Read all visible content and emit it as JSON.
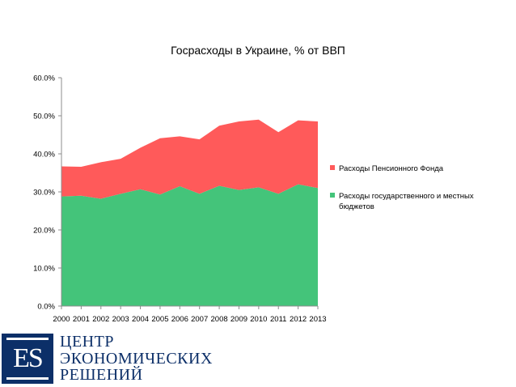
{
  "chart_data": {
    "type": "area",
    "stacked": true,
    "title": "Госрасходы в Украине, % от ВВП",
    "xlabel": "",
    "ylabel": "",
    "x": [
      "2000",
      "2001",
      "2002",
      "2003",
      "2004",
      "2005",
      "2006",
      "2007",
      "2008",
      "2009",
      "2010",
      "2011",
      "2012",
      "2013"
    ],
    "ylim": [
      0,
      60
    ],
    "yticks": [
      "0.0%",
      "10.0%",
      "20.0%",
      "30.0%",
      "40.0%",
      "50.0%",
      "60.0%"
    ],
    "ytick_values": [
      0,
      10,
      20,
      30,
      40,
      50,
      60
    ],
    "grid": false,
    "legend_position": "right",
    "series": [
      {
        "name": "Расходы государственного и местных бюджетов",
        "color": "#44c47a",
        "values": [
          28.8,
          29.0,
          28.2,
          29.5,
          30.7,
          29.3,
          31.5,
          29.5,
          31.6,
          30.5,
          31.2,
          29.5,
          32.0,
          31.0
        ]
      },
      {
        "name": "Расходы Пенсионного Фонда",
        "color": "#ff5a5a",
        "values": [
          7.9,
          7.6,
          9.6,
          9.2,
          10.9,
          14.8,
          13.1,
          14.3,
          15.8,
          18.0,
          17.8,
          16.2,
          16.8,
          17.5
        ]
      }
    ],
    "legend_order": [
      "Расходы Пенсионного Фонда",
      "Расходы государственного и местных бюджетов"
    ]
  },
  "logo": {
    "mark": "ES",
    "lines": [
      "ЦЕНТР",
      "ЭКОНОМИЧЕСКИХ",
      "РЕШЕНИЙ"
    ],
    "color": "#0c2f68"
  }
}
